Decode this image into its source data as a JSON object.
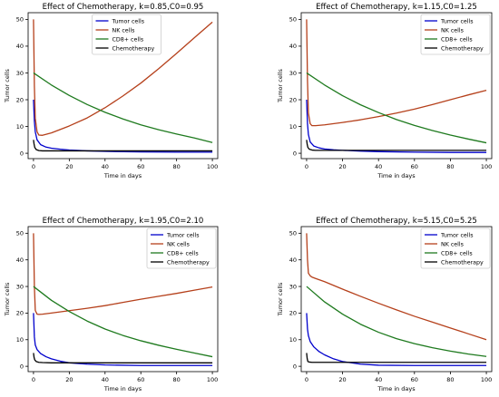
{
  "figure": {},
  "chart_data": [
    {
      "type": "line",
      "title": "Effect of Chemotherapy, k=0.85,C0=0.95",
      "xlabel": "Time in days",
      "ylabel": "Tumor cells",
      "xlim": [
        -3,
        103
      ],
      "ylim": [
        -2,
        52.5
      ],
      "xticks": [
        0,
        20,
        40,
        60,
        80,
        100
      ],
      "yticks": [
        0,
        10,
        20,
        30,
        40,
        50
      ],
      "legend_position": "top-center",
      "series": [
        {
          "name": "Tumor cells",
          "color": "#0000cc",
          "x": [
            0,
            0.5,
            1,
            2,
            4,
            7,
            10,
            15,
            20,
            30,
            40,
            60,
            80,
            100
          ],
          "y": [
            20,
            12,
            8,
            5,
            3.2,
            2.3,
            1.9,
            1.5,
            1.2,
            0.9,
            0.7,
            0.5,
            0.4,
            0.4
          ]
        },
        {
          "name": "NK cells",
          "color": "#b5401b",
          "x": [
            0,
            0.5,
            1,
            2,
            3,
            5,
            10,
            20,
            30,
            40,
            50,
            60,
            70,
            80,
            90,
            100
          ],
          "y": [
            50,
            25,
            13,
            8,
            6.8,
            6.7,
            7.6,
            10.2,
            13.2,
            17.0,
            21.4,
            26.2,
            31.6,
            37.3,
            43.2,
            49.0
          ]
        },
        {
          "name": "CD8+ cells",
          "color": "#1e7a1e",
          "x": [
            0,
            10,
            20,
            30,
            40,
            50,
            60,
            70,
            80,
            90,
            100
          ],
          "y": [
            30,
            25.5,
            21.6,
            18.2,
            15.3,
            12.8,
            10.6,
            8.8,
            7.2,
            5.7,
            4.0
          ]
        },
        {
          "name": "Chemotherapy",
          "color": "#000000",
          "x": [
            0,
            0.3,
            0.7,
            1.5,
            3,
            5,
            10,
            20,
            40,
            60,
            80,
            100
          ],
          "y": [
            5,
            3.5,
            2.2,
            1.4,
            1.0,
            0.9,
            0.9,
            0.9,
            0.9,
            0.9,
            0.9,
            0.9
          ]
        }
      ]
    },
    {
      "type": "line",
      "title": "Effect of Chemotherapy, k=1.15,C0=1.25",
      "xlabel": "Time in days",
      "ylabel": "Tumor cells",
      "xlim": [
        -3,
        103
      ],
      "ylim": [
        -2,
        52.5
      ],
      "xticks": [
        0,
        20,
        40,
        60,
        80,
        100
      ],
      "yticks": [
        0,
        10,
        20,
        30,
        40,
        50
      ],
      "legend_position": "top-right",
      "series": [
        {
          "name": "Tumor cells",
          "color": "#0000cc",
          "x": [
            0,
            0.5,
            1,
            2,
            4,
            7,
            10,
            15,
            20,
            30,
            40,
            60,
            80,
            100
          ],
          "y": [
            20,
            11,
            7,
            4.2,
            2.7,
            2.0,
            1.6,
            1.3,
            1.1,
            0.8,
            0.6,
            0.4,
            0.3,
            0.3
          ]
        },
        {
          "name": "NK cells",
          "color": "#b5401b",
          "x": [
            0,
            0.5,
            1,
            2,
            3,
            5,
            10,
            20,
            30,
            40,
            50,
            60,
            70,
            80,
            90,
            100
          ],
          "y": [
            50,
            27,
            15,
            11,
            10.3,
            10.3,
            10.6,
            11.5,
            12.5,
            13.7,
            15.0,
            16.5,
            18.2,
            20.0,
            21.8,
            23.5
          ]
        },
        {
          "name": "CD8+ cells",
          "color": "#1e7a1e",
          "x": [
            0,
            10,
            20,
            30,
            40,
            50,
            60,
            70,
            80,
            90,
            100
          ],
          "y": [
            30,
            25.5,
            21.5,
            18.1,
            15.2,
            12.6,
            10.4,
            8.5,
            6.8,
            5.3,
            3.9
          ]
        },
        {
          "name": "Chemotherapy",
          "color": "#000000",
          "x": [
            0,
            0.3,
            0.7,
            1.5,
            3,
            5,
            10,
            20,
            40,
            60,
            80,
            100
          ],
          "y": [
            5,
            3.4,
            2.2,
            1.5,
            1.2,
            1.1,
            1.1,
            1.1,
            1.1,
            1.1,
            1.1,
            1.1
          ]
        }
      ]
    },
    {
      "type": "line",
      "title": "Effect of Chemotherapy, k=1.95,C0=2.10",
      "xlabel": "Time in days",
      "ylabel": "Tumor cells",
      "xlim": [
        -3,
        103
      ],
      "ylim": [
        -2,
        52.5
      ],
      "xticks": [
        0,
        20,
        40,
        60,
        80,
        100
      ],
      "yticks": [
        0,
        10,
        20,
        30,
        40,
        50
      ],
      "legend_position": "top-right",
      "series": [
        {
          "name": "Tumor cells",
          "color": "#0000cc",
          "x": [
            0,
            0.5,
            1,
            2,
            4,
            7,
            10,
            15,
            20,
            30,
            40,
            60,
            80,
            100
          ],
          "y": [
            20,
            11,
            8,
            6.3,
            4.8,
            3.6,
            2.8,
            1.9,
            1.3,
            0.8,
            0.5,
            0.3,
            0.3,
            0.3
          ]
        },
        {
          "name": "NK cells",
          "color": "#b5401b",
          "x": [
            0,
            0.5,
            1,
            2,
            3,
            5,
            10,
            20,
            30,
            40,
            50,
            60,
            70,
            80,
            90,
            100
          ],
          "y": [
            50,
            30,
            21,
            19.6,
            19.5,
            19.6,
            20.0,
            20.9,
            21.8,
            22.8,
            24.0,
            25.2,
            26.3,
            27.4,
            28.6,
            29.8
          ]
        },
        {
          "name": "CD8+ cells",
          "color": "#1e7a1e",
          "x": [
            0,
            10,
            20,
            30,
            40,
            50,
            60,
            70,
            80,
            90,
            100
          ],
          "y": [
            30,
            24.8,
            20.6,
            17.0,
            14.0,
            11.6,
            9.6,
            7.9,
            6.4,
            5.0,
            3.6
          ]
        },
        {
          "name": "Chemotherapy",
          "color": "#000000",
          "x": [
            0,
            0.3,
            0.7,
            1.5,
            3,
            5,
            10,
            20,
            40,
            60,
            80,
            100
          ],
          "y": [
            5,
            3.4,
            2.4,
            1.8,
            1.5,
            1.4,
            1.3,
            1.3,
            1.3,
            1.3,
            1.3,
            1.3
          ]
        }
      ]
    },
    {
      "type": "line",
      "title": "Effect of Chemotherapy, k=5.15,C0=5.25",
      "xlabel": "Time in days",
      "ylabel": "Tumor cells",
      "xlim": [
        -3,
        103
      ],
      "ylim": [
        -2,
        52.5
      ],
      "xticks": [
        0,
        20,
        40,
        60,
        80,
        100
      ],
      "yticks": [
        0,
        10,
        20,
        30,
        40,
        50
      ],
      "legend_position": "top-right",
      "series": [
        {
          "name": "Tumor cells",
          "color": "#0000cc",
          "x": [
            0,
            0.5,
            1,
            2,
            4,
            7,
            10,
            15,
            20,
            30,
            40,
            60,
            80,
            100
          ],
          "y": [
            20,
            14,
            11.5,
            9.3,
            7.3,
            5.5,
            4.3,
            2.8,
            1.8,
            0.8,
            0.4,
            0.3,
            0.3,
            0.3
          ]
        },
        {
          "name": "NK cells",
          "color": "#b5401b",
          "x": [
            0,
            0.5,
            1,
            2,
            3,
            5,
            10,
            20,
            30,
            40,
            50,
            60,
            70,
            80,
            90,
            100
          ],
          "y": [
            50,
            40,
            35,
            34,
            33.5,
            33,
            31.8,
            29.0,
            26.3,
            23.7,
            21.2,
            18.8,
            16.6,
            14.4,
            12.2,
            10.0
          ]
        },
        {
          "name": "CD8+ cells",
          "color": "#1e7a1e",
          "x": [
            0,
            10,
            20,
            30,
            40,
            50,
            60,
            70,
            80,
            90,
            100
          ],
          "y": [
            30,
            24.2,
            19.6,
            15.8,
            12.8,
            10.4,
            8.5,
            7.0,
            5.7,
            4.6,
            3.7
          ]
        },
        {
          "name": "Chemotherapy",
          "color": "#000000",
          "x": [
            0,
            0.3,
            0.7,
            1.5,
            3,
            5,
            10,
            20,
            40,
            60,
            80,
            100
          ],
          "y": [
            5,
            3.0,
            1.8,
            1.6,
            1.5,
            1.5,
            1.5,
            1.5,
            1.5,
            1.5,
            1.5,
            1.5
          ]
        }
      ]
    }
  ]
}
